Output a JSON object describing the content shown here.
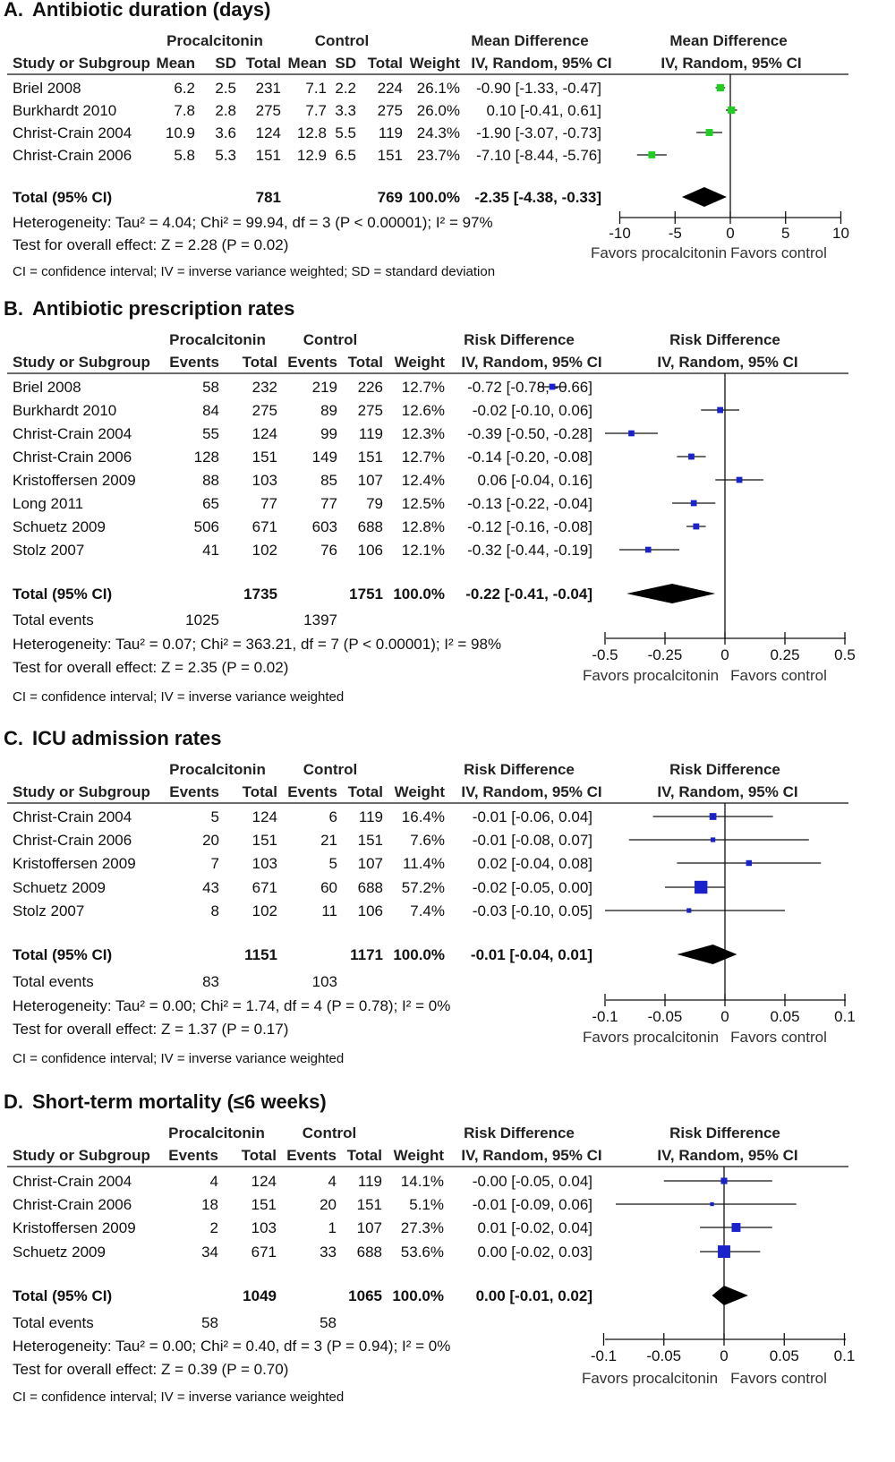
{
  "chart_data": [
    {
      "type": "forest",
      "panel": "A.",
      "title": "Antibiotic duration (days)",
      "group_headers": [
        "Procalcitonin",
        "Control",
        "Mean Difference",
        "Mean Difference"
      ],
      "columns": [
        "Study or Subgroup",
        "Mean",
        "SD",
        "Total",
        "Mean",
        "SD",
        "Total",
        "Weight",
        "IV, Random, 95% CI",
        "IV, Random, 95% CI"
      ],
      "rows": [
        {
          "study": "Briel 2008",
          "cells": [
            "6.2",
            "2.5",
            "231",
            "7.1",
            "2.2",
            "224",
            "26.1%",
            "-0.90 [-1.33, -0.47]"
          ],
          "est": -0.9,
          "lo": -1.33,
          "hi": -0.47,
          "w": 26.1
        },
        {
          "study": "Burkhardt 2010",
          "cells": [
            "7.8",
            "2.8",
            "275",
            "7.7",
            "3.3",
            "275",
            "26.0%",
            "0.10 [-0.41, 0.61]"
          ],
          "est": 0.1,
          "lo": -0.41,
          "hi": 0.61,
          "w": 26.0
        },
        {
          "study": "Christ-Crain 2004",
          "cells": [
            "10.9",
            "3.6",
            "124",
            "12.8",
            "5.5",
            "119",
            "24.3%",
            "-1.90 [-3.07, -0.73]"
          ],
          "est": -1.9,
          "lo": -3.07,
          "hi": -0.73,
          "w": 24.3
        },
        {
          "study": "Christ-Crain 2006",
          "cells": [
            "5.8",
            "5.3",
            "151",
            "12.9",
            "6.5",
            "151",
            "23.7%",
            "-7.10 [-8.44, -5.76]"
          ],
          "est": -7.1,
          "lo": -8.44,
          "hi": -5.76,
          "w": 23.7
        }
      ],
      "total": {
        "label": "Total (95% CI)",
        "cells": [
          "",
          "",
          "781",
          "",
          "",
          "769",
          "100.0%",
          "-2.35 [-4.38, -0.33]"
        ],
        "est": -2.35,
        "lo": -4.38,
        "hi": -0.33
      },
      "total_events": null,
      "heterogeneity": "Heterogeneity: Tau² = 4.04; Chi² = 99.94, df = 3 (P < 0.00001); I² = 97%",
      "overall": "Test for overall effect: Z = 2.28 (P = 0.02)",
      "footnote": "CI = confidence interval; IV = inverse variance weighted; SD = standard deviation",
      "axis": {
        "min": -10,
        "max": 10,
        "ticks": [
          -10,
          -5,
          0,
          5,
          10
        ],
        "tick_labels": [
          "-10",
          "-5",
          "0",
          "5",
          "10"
        ]
      },
      "favors": [
        "Favors procalcitonin",
        "Favors control"
      ],
      "marker_color": "#22cc22"
    },
    {
      "type": "forest",
      "panel": "B.",
      "title": "Antibiotic prescription rates",
      "group_headers": [
        "Procalcitonin",
        "Control",
        "Risk Difference",
        "Risk Difference"
      ],
      "columns": [
        "Study or Subgroup",
        "Events",
        "Total",
        "Events",
        "Total",
        "Weight",
        "IV, Random, 95% CI",
        "IV, Random, 95% CI"
      ],
      "rows": [
        {
          "study": "Briel 2008",
          "cells": [
            "58",
            "232",
            "219",
            "226",
            "12.7%",
            "-0.72 [-0.78, -0.66]"
          ],
          "est": -0.72,
          "lo": -0.78,
          "hi": -0.66,
          "w": 12.7
        },
        {
          "study": "Burkhardt 2010",
          "cells": [
            "84",
            "275",
            "89",
            "275",
            "12.6%",
            "-0.02 [-0.10, 0.06]"
          ],
          "est": -0.02,
          "lo": -0.1,
          "hi": 0.06,
          "w": 12.6
        },
        {
          "study": "Christ-Crain 2004",
          "cells": [
            "55",
            "124",
            "99",
            "119",
            "12.3%",
            "-0.39 [-0.50, -0.28]"
          ],
          "est": -0.39,
          "lo": -0.5,
          "hi": -0.28,
          "w": 12.3
        },
        {
          "study": "Christ-Crain 2006",
          "cells": [
            "128",
            "151",
            "149",
            "151",
            "12.7%",
            "-0.14 [-0.20, -0.08]"
          ],
          "est": -0.14,
          "lo": -0.2,
          "hi": -0.08,
          "w": 12.7
        },
        {
          "study": "Kristoffersen 2009",
          "cells": [
            "88",
            "103",
            "85",
            "107",
            "12.4%",
            "0.06 [-0.04, 0.16]"
          ],
          "est": 0.06,
          "lo": -0.04,
          "hi": 0.16,
          "w": 12.4
        },
        {
          "study": "Long 2011",
          "cells": [
            "65",
            "77",
            "77",
            "79",
            "12.5%",
            "-0.13 [-0.22, -0.04]"
          ],
          "est": -0.13,
          "lo": -0.22,
          "hi": -0.04,
          "w": 12.5
        },
        {
          "study": "Schuetz 2009",
          "cells": [
            "506",
            "671",
            "603",
            "688",
            "12.8%",
            "-0.12 [-0.16, -0.08]"
          ],
          "est": -0.12,
          "lo": -0.16,
          "hi": -0.08,
          "w": 12.8
        },
        {
          "study": "Stolz 2007",
          "cells": [
            "41",
            "102",
            "76",
            "106",
            "12.1%",
            "-0.32 [-0.44, -0.19]"
          ],
          "est": -0.32,
          "lo": -0.44,
          "hi": -0.19,
          "w": 12.1
        }
      ],
      "total": {
        "label": "Total (95% CI)",
        "cells": [
          "",
          "1735",
          "",
          "1751",
          "100.0%",
          "-0.22 [-0.41, -0.04]"
        ],
        "est": -0.22,
        "lo": -0.41,
        "hi": -0.04
      },
      "total_events": {
        "label": "Total events",
        "cells": [
          "1025",
          "",
          "1397",
          ""
        ]
      },
      "heterogeneity": "Heterogeneity: Tau² = 0.07; Chi² = 363.21, df = 7 (P < 0.00001); I² = 98%",
      "overall": "Test for overall effect: Z = 2.35 (P = 0.02)",
      "footnote": "CI = confidence interval; IV = inverse variance weighted",
      "axis": {
        "min": -0.5,
        "max": 0.5,
        "ticks": [
          -0.5,
          -0.25,
          0,
          0.25,
          0.5
        ],
        "tick_labels": [
          "-0.5",
          "-0.25",
          "0",
          "0.25",
          "0.5"
        ]
      },
      "favors": [
        "Favors procalcitonin",
        "Favors control"
      ],
      "marker_color": "#1a22cc"
    },
    {
      "type": "forest",
      "panel": "C.",
      "title": "ICU admission rates",
      "group_headers": [
        "Procalcitonin",
        "Control",
        "Risk Difference",
        "Risk Difference"
      ],
      "columns": [
        "Study or Subgroup",
        "Events",
        "Total",
        "Events",
        "Total",
        "Weight",
        "IV, Random, 95% CI",
        "IV, Random, 95% CI"
      ],
      "rows": [
        {
          "study": "Christ-Crain 2004",
          "cells": [
            "5",
            "124",
            "6",
            "119",
            "16.4%",
            "-0.01 [-0.06, 0.04]"
          ],
          "est": -0.01,
          "lo": -0.06,
          "hi": 0.04,
          "w": 16.4
        },
        {
          "study": "Christ-Crain 2006",
          "cells": [
            "20",
            "151",
            "21",
            "151",
            "7.6%",
            "-0.01 [-0.08, 0.07]"
          ],
          "est": -0.01,
          "lo": -0.08,
          "hi": 0.07,
          "w": 7.6
        },
        {
          "study": "Kristoffersen 2009",
          "cells": [
            "7",
            "103",
            "5",
            "107",
            "11.4%",
            "0.02 [-0.04, 0.08]"
          ],
          "est": 0.02,
          "lo": -0.04,
          "hi": 0.08,
          "w": 11.4
        },
        {
          "study": "Schuetz 2009",
          "cells": [
            "43",
            "671",
            "60",
            "688",
            "57.2%",
            "-0.02 [-0.05, 0.00]"
          ],
          "est": -0.02,
          "lo": -0.05,
          "hi": 0.0,
          "w": 57.2
        },
        {
          "study": "Stolz 2007",
          "cells": [
            "8",
            "102",
            "11",
            "106",
            "7.4%",
            "-0.03 [-0.10, 0.05]"
          ],
          "est": -0.03,
          "lo": -0.1,
          "hi": 0.05,
          "w": 7.4
        }
      ],
      "total": {
        "label": "Total (95% CI)",
        "cells": [
          "",
          "1151",
          "",
          "1171",
          "100.0%",
          "-0.01 [-0.04, 0.01]"
        ],
        "est": -0.01,
        "lo": -0.04,
        "hi": 0.01
      },
      "total_events": {
        "label": "Total events",
        "cells": [
          "83",
          "",
          "103",
          ""
        ]
      },
      "heterogeneity": "Heterogeneity: Tau² = 0.00; Chi² = 1.74, df = 4 (P = 0.78); I² = 0%",
      "overall": "Test for overall effect: Z = 1.37 (P = 0.17)",
      "footnote": "CI = confidence interval; IV = inverse variance weighted",
      "axis": {
        "min": -0.1,
        "max": 0.1,
        "ticks": [
          -0.1,
          -0.05,
          0,
          0.05,
          0.1
        ],
        "tick_labels": [
          "-0.1",
          "-0.05",
          "0",
          "0.05",
          "0.1"
        ]
      },
      "favors": [
        "Favors procalcitonin",
        "Favors control"
      ],
      "marker_color": "#1a22cc"
    },
    {
      "type": "forest",
      "panel": "D.",
      "title": "Short-term mortality (≤6 weeks)",
      "group_headers": [
        "Procalcitonin",
        "Control",
        "Risk Difference",
        "Risk Difference"
      ],
      "columns": [
        "Study or Subgroup",
        "Events",
        "Total",
        "Events",
        "Total",
        "Weight",
        "IV, Random, 95% CI",
        "IV, Random, 95% CI"
      ],
      "rows": [
        {
          "study": "Christ-Crain 2004",
          "cells": [
            "4",
            "124",
            "4",
            "119",
            "14.1%",
            "-0.00 [-0.05, 0.04]"
          ],
          "est": -0.0,
          "lo": -0.05,
          "hi": 0.04,
          "w": 14.1
        },
        {
          "study": "Christ-Crain 2006",
          "cells": [
            "18",
            "151",
            "20",
            "151",
            "5.1%",
            "-0.01 [-0.09, 0.06]"
          ],
          "est": -0.01,
          "lo": -0.09,
          "hi": 0.06,
          "w": 5.1
        },
        {
          "study": "Kristoffersen 2009",
          "cells": [
            "2",
            "103",
            "1",
            "107",
            "27.3%",
            "0.01 [-0.02, 0.04]"
          ],
          "est": 0.01,
          "lo": -0.02,
          "hi": 0.04,
          "w": 27.3
        },
        {
          "study": "Schuetz 2009",
          "cells": [
            "34",
            "671",
            "33",
            "688",
            "53.6%",
            "0.00 [-0.02, 0.03]"
          ],
          "est": 0.0,
          "lo": -0.02,
          "hi": 0.03,
          "w": 53.6
        }
      ],
      "total": {
        "label": "Total (95% CI)",
        "cells": [
          "",
          "1049",
          "",
          "1065",
          "100.0%",
          "0.00 [-0.01, 0.02]"
        ],
        "est": 0.0,
        "lo": -0.01,
        "hi": 0.02
      },
      "total_events": {
        "label": "Total events",
        "cells": [
          "58",
          "",
          "58",
          ""
        ]
      },
      "heterogeneity": "Heterogeneity: Tau² = 0.00; Chi² = 0.40, df = 3 (P = 0.94); I² = 0%",
      "overall": "Test for overall effect: Z = 0.39 (P = 0.70)",
      "footnote": "CI = confidence interval; IV = inverse variance weighted",
      "axis": {
        "min": -0.1,
        "max": 0.1,
        "ticks": [
          -0.1,
          -0.05,
          0,
          0.05,
          0.1
        ],
        "tick_labels": [
          "-0.1",
          "-0.05",
          "0",
          "0.05",
          "0.1"
        ]
      },
      "favors": [
        "Favors procalcitonin",
        "Favors control"
      ],
      "marker_color": "#1a22cc"
    }
  ]
}
